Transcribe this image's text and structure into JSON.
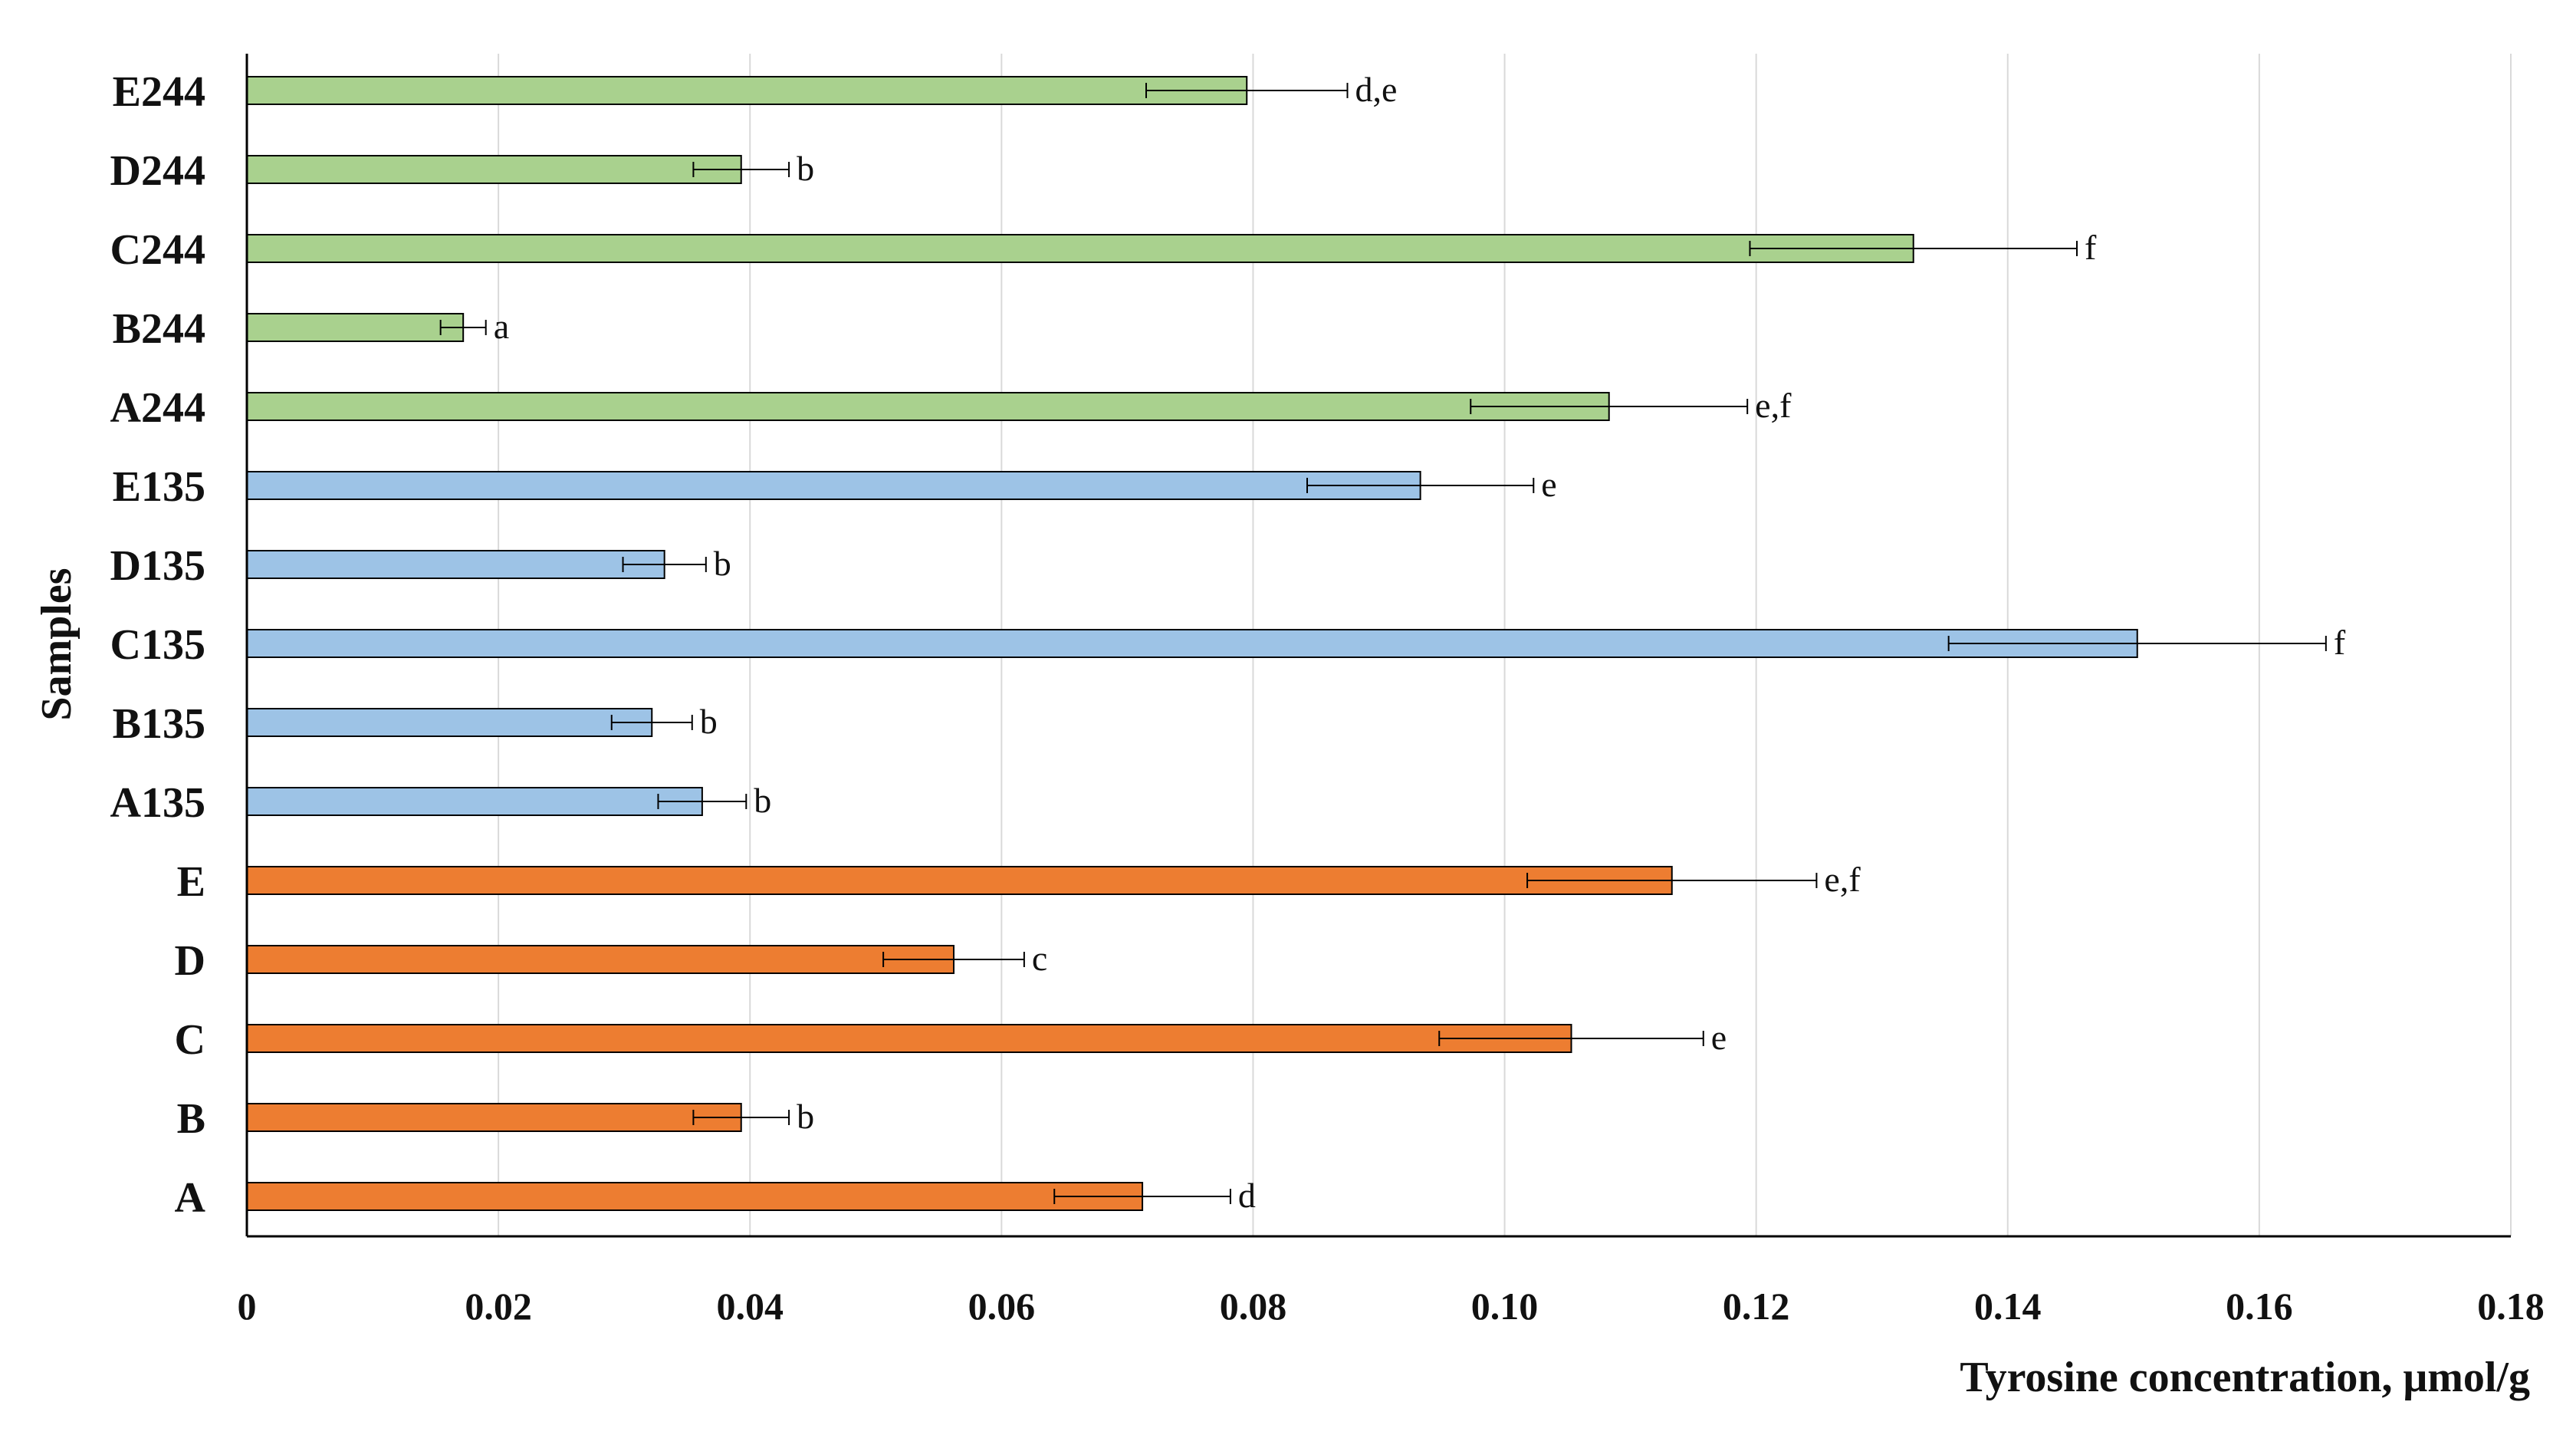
{
  "chart_data": {
    "type": "bar",
    "orientation": "horizontal",
    "title": "",
    "xlabel": "Tyrosine concentration, μmol/g",
    "ylabel": "Samples",
    "xlim": [
      0,
      0.18
    ],
    "x_ticks": [
      0,
      0.02,
      0.04,
      0.06,
      0.08,
      0.1,
      0.12,
      0.14,
      0.16,
      0.18
    ],
    "x_tick_labels": [
      "0",
      "0.02",
      "0.04",
      "0.06",
      "0.08",
      "0.10",
      "0.12",
      "0.14",
      "0.16",
      "0.18"
    ],
    "grid": "vertical",
    "legend": "none",
    "colors": {
      "group_244": "#a9d18e",
      "group_135": "#9dc3e6",
      "group_base": "#ed7d31",
      "bar_outline": "#000000",
      "grid": "#d9d9d9",
      "axis": "#000000"
    },
    "bars": [
      {
        "label": "E244",
        "value": 0.0795,
        "error": 0.008,
        "sig": "d,e",
        "group": "group_244"
      },
      {
        "label": "D244",
        "value": 0.0393,
        "error": 0.0038,
        "sig": "b",
        "group": "group_244"
      },
      {
        "label": "C244",
        "value": 0.1325,
        "error": 0.013,
        "sig": "f",
        "group": "group_244"
      },
      {
        "label": "B244",
        "value": 0.0172,
        "error": 0.0018,
        "sig": "a",
        "group": "group_244"
      },
      {
        "label": "A244",
        "value": 0.1083,
        "error": 0.011,
        "sig": "e,f",
        "group": "group_244"
      },
      {
        "label": "E135",
        "value": 0.0933,
        "error": 0.009,
        "sig": "e",
        "group": "group_135"
      },
      {
        "label": "D135",
        "value": 0.0332,
        "error": 0.0033,
        "sig": "b",
        "group": "group_135"
      },
      {
        "label": "C135",
        "value": 0.1503,
        "error": 0.015,
        "sig": "f",
        "group": "group_135"
      },
      {
        "label": "B135",
        "value": 0.0322,
        "error": 0.0032,
        "sig": "b",
        "group": "group_135"
      },
      {
        "label": "A135",
        "value": 0.0362,
        "error": 0.0035,
        "sig": "b",
        "group": "group_135"
      },
      {
        "label": "E",
        "value": 0.1133,
        "error": 0.0115,
        "sig": "e,f",
        "group": "group_base"
      },
      {
        "label": "D",
        "value": 0.0562,
        "error": 0.0056,
        "sig": "c",
        "group": "group_base"
      },
      {
        "label": "C",
        "value": 0.1053,
        "error": 0.0105,
        "sig": "e",
        "group": "group_base"
      },
      {
        "label": "B",
        "value": 0.0393,
        "error": 0.0038,
        "sig": "b",
        "group": "group_base"
      },
      {
        "label": "A",
        "value": 0.0712,
        "error": 0.007,
        "sig": "d",
        "group": "group_base"
      }
    ]
  }
}
